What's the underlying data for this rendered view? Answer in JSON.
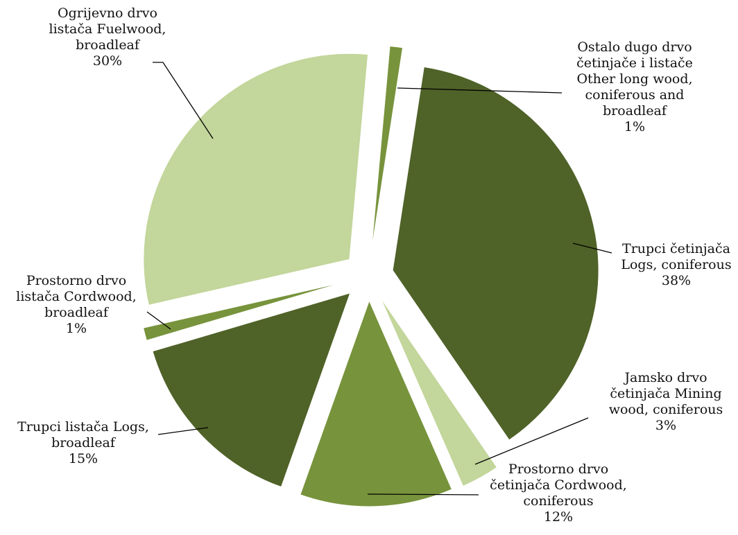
{
  "chart_data": {
    "type": "pie",
    "title": "",
    "exploded": true,
    "legend": "none",
    "slices": [
      {
        "label_lines": [
          "Ostalo dugo drvo",
          "četinjače i listače",
          "Other long wood,",
          "coniferous and",
          "broadleaf"
        ],
        "percent_label": "1%",
        "value": 1,
        "color": "#77933C"
      },
      {
        "label_lines": [
          "Trupci četinjača",
          "Logs, coniferous"
        ],
        "percent_label": "38%",
        "value": 38,
        "color": "#4F6228"
      },
      {
        "label_lines": [
          "Jamsko drvo",
          "četinjača Mining",
          "wood, coniferous"
        ],
        "percent_label": "3%",
        "value": 3,
        "color": "#C3D69B"
      },
      {
        "label_lines": [
          "Prostorno drvo",
          "četinjača Cordwood,",
          "coniferous"
        ],
        "percent_label": "12%",
        "value": 12,
        "color": "#77933C"
      },
      {
        "label_lines": [
          "Trupci listača Logs,",
          "broadleaf"
        ],
        "percent_label": "15%",
        "value": 15,
        "color": "#4F6228"
      },
      {
        "label_lines": [
          "Prostorno drvo",
          "listača Cordwood,",
          "broadleaf"
        ],
        "percent_label": "1%",
        "value": 1,
        "color": "#77933C"
      },
      {
        "label_lines": [
          "Ogrijevno drvo",
          "listača  Fuelwood,",
          "broadleaf"
        ],
        "percent_label": "30%",
        "value": 30,
        "color": "#C3D69B"
      }
    ]
  }
}
